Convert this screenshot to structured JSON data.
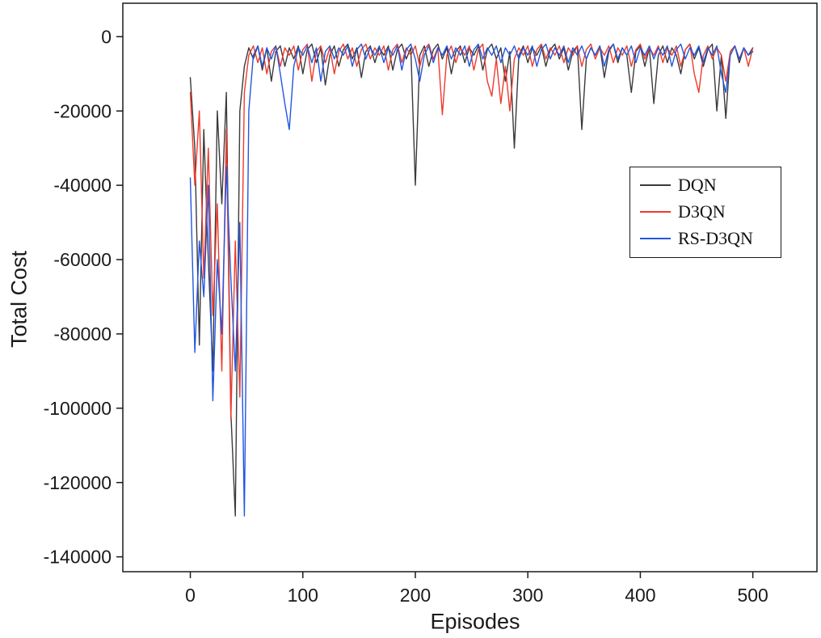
{
  "chart_data": {
    "type": "line",
    "title": "",
    "xlabel": "Episodes",
    "ylabel": "Total Cost",
    "xlim": [
      -60,
      557
    ],
    "ylim": [
      -144000,
      9000
    ],
    "xticks": [
      0,
      100,
      200,
      300,
      400,
      500
    ],
    "yticks": [
      0,
      -20000,
      -40000,
      -60000,
      -80000,
      -100000,
      -120000,
      -140000
    ],
    "grid": false,
    "legend_position": "upper-right",
    "x_start": 0,
    "x_step": 4,
    "series": [
      {
        "name": "DQN",
        "color": "#3a3a3a",
        "values": [
          -11000,
          -30000,
          -83000,
          -25000,
          -60000,
          -90000,
          -20000,
          -45000,
          -15000,
          -101000,
          -129000,
          -20000,
          -8000,
          -3000,
          -6000,
          -2500,
          -9000,
          -3000,
          -12000,
          -4000,
          -2500,
          -8000,
          -3000,
          -6000,
          -2500,
          -10000,
          -3500,
          -2000,
          -7000,
          -3000,
          -13000,
          -5000,
          -2500,
          -8000,
          -3500,
          -2000,
          -6000,
          -3000,
          -11000,
          -4000,
          -2500,
          -7000,
          -3000,
          -5000,
          -2500,
          -9000,
          -3500,
          -2000,
          -6000,
          -3000,
          -40000,
          -5000,
          -2500,
          -8000,
          -3500,
          -2000,
          -6000,
          -3000,
          -10000,
          -4000,
          -2500,
          -7000,
          -3000,
          -5000,
          -2500,
          -9000,
          -3500,
          -2000,
          -6000,
          -3000,
          -12000,
          -4000,
          -30000,
          -5000,
          -2500,
          -7000,
          -3000,
          -5000,
          -2500,
          -8000,
          -3500,
          -2000,
          -6000,
          -3000,
          -9000,
          -4000,
          -2500,
          -25000,
          -6000,
          -3000,
          -5000,
          -2500,
          -11000,
          -4000,
          -2000,
          -7000,
          -3000,
          -5000,
          -15000,
          -4000,
          -2500,
          -8000,
          -3000,
          -18000,
          -5000,
          -2500,
          -7000,
          -3000,
          -5000,
          -10000,
          -3500,
          -2000,
          -6000,
          -3000,
          -8000,
          -3500,
          -2000,
          -20000,
          -5000,
          -22000,
          -4000,
          -2500,
          -7000,
          -3000,
          -5000,
          -3000
        ]
      },
      {
        "name": "D3QN",
        "color": "#ee3a2c",
        "values": [
          -15000,
          -40000,
          -20000,
          -65000,
          -30000,
          -75000,
          -45000,
          -90000,
          -25000,
          -103000,
          -55000,
          -97000,
          -15000,
          -5000,
          -2500,
          -7000,
          -3000,
          -10000,
          -4000,
          -2500,
          -8000,
          -3000,
          -5000,
          -2500,
          -9000,
          -3500,
          -2000,
          -12000,
          -4000,
          -2500,
          -7000,
          -3000,
          -10000,
          -4000,
          -2000,
          -6000,
          -3000,
          -8000,
          -3500,
          -2000,
          -6000,
          -3000,
          -5000,
          -2500,
          -9000,
          -3500,
          -2000,
          -7000,
          -3000,
          -5000,
          -2500,
          -8000,
          -3500,
          -2000,
          -6000,
          -3000,
          -21000,
          -5000,
          -2500,
          -7000,
          -3000,
          -5000,
          -2500,
          -9000,
          -3500,
          -2000,
          -12000,
          -16000,
          -6000,
          -18000,
          -8000,
          -20000,
          -6000,
          -3000,
          -5000,
          -2500,
          -8000,
          -3500,
          -2000,
          -6000,
          -3000,
          -5000,
          -2500,
          -7000,
          -3000,
          -5000,
          -2500,
          -8000,
          -3500,
          -2000,
          -6000,
          -3000,
          -5000,
          -2500,
          -7000,
          -3000,
          -5000,
          -2500,
          -8000,
          -3500,
          -2000,
          -6000,
          -3000,
          -5000,
          -2500,
          -7000,
          -3000,
          -5000,
          -2500,
          -8000,
          -3500,
          -2000,
          -10000,
          -15000,
          -5000,
          -2500,
          -6000,
          -3000,
          -5000,
          -12000,
          -4000,
          -2500,
          -6000,
          -3000,
          -8000,
          -3000
        ]
      },
      {
        "name": "RS-D3QN",
        "color": "#2256e0",
        "values": [
          -38000,
          -85000,
          -55000,
          -70000,
          -40000,
          -98000,
          -60000,
          -80000,
          -35000,
          -65000,
          -90000,
          -50000,
          -129000,
          -20000,
          -5000,
          -2500,
          -8000,
          -3000,
          -6000,
          -2500,
          -10000,
          -18000,
          -25000,
          -8000,
          -3000,
          -5000,
          -2500,
          -7000,
          -3000,
          -12000,
          -4000,
          -2500,
          -6000,
          -3000,
          -5000,
          -2500,
          -8000,
          -3500,
          -2000,
          -6000,
          -3000,
          -5000,
          -2500,
          -7000,
          -3000,
          -5000,
          -2500,
          -9000,
          -3500,
          -2000,
          -6000,
          -12000,
          -5000,
          -2500,
          -7000,
          -3000,
          -5000,
          -2500,
          -6000,
          -3000,
          -5000,
          -2500,
          -8000,
          -3500,
          -2000,
          -6000,
          -3000,
          -5000,
          -2500,
          -7000,
          -3000,
          -5000,
          -2500,
          -6000,
          -3000,
          -5000,
          -2500,
          -8000,
          -3500,
          -2000,
          -6000,
          -3000,
          -5000,
          -2500,
          -7000,
          -3000,
          -5000,
          -2500,
          -6000,
          -3000,
          -5000,
          -2500,
          -8000,
          -3500,
          -2000,
          -6000,
          -3000,
          -5000,
          -2500,
          -7000,
          -3000,
          -5000,
          -2500,
          -6000,
          -3000,
          -5000,
          -2500,
          -8000,
          -3500,
          -2000,
          -6000,
          -3000,
          -5000,
          -2500,
          -7000,
          -3000,
          -5000,
          -2500,
          -10000,
          -15000,
          -5000,
          -2500,
          -6000,
          -3000,
          -5000,
          -4000
        ]
      }
    ]
  },
  "colors": {
    "frame": "#1a1a1a",
    "background": "#ffffff"
  }
}
